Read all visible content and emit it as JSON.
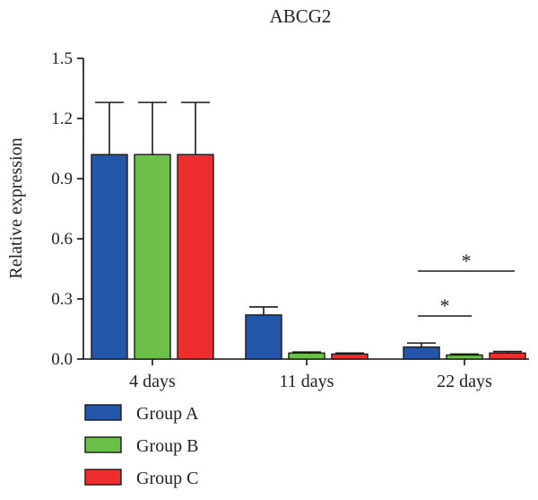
{
  "chart_data": {
    "type": "bar",
    "title": "ABCG2",
    "xlabel": "",
    "ylabel": "Relative expression",
    "ylim": [
      0,
      1.5
    ],
    "yticks": [
      "0.0",
      "0.3",
      "0.6",
      "0.9",
      "1.2",
      "1.5"
    ],
    "categories": [
      "4 days",
      "11 days",
      "22 days"
    ],
    "series": [
      {
        "name": "Group A",
        "color": "#2356a8",
        "values": [
          1.02,
          0.22,
          0.06
        ],
        "errors": [
          0.26,
          0.04,
          0.02
        ]
      },
      {
        "name": "Group B",
        "color": "#6cc04a",
        "values": [
          1.02,
          0.03,
          0.02
        ],
        "errors": [
          0.26,
          0.005,
          0.005
        ]
      },
      {
        "name": "Group C",
        "color": "#ee2e2e",
        "values": [
          1.02,
          0.025,
          0.03
        ],
        "errors": [
          0.26,
          0.005,
          0.008
        ]
      }
    ],
    "significance": [
      {
        "category": "22 days",
        "from": "Group A",
        "to": "Group B",
        "label": "*"
      },
      {
        "category": "22 days",
        "from": "Group A",
        "to": "Group C",
        "label": "*"
      }
    ],
    "legend_position": "bottom-left",
    "grid": false
  }
}
